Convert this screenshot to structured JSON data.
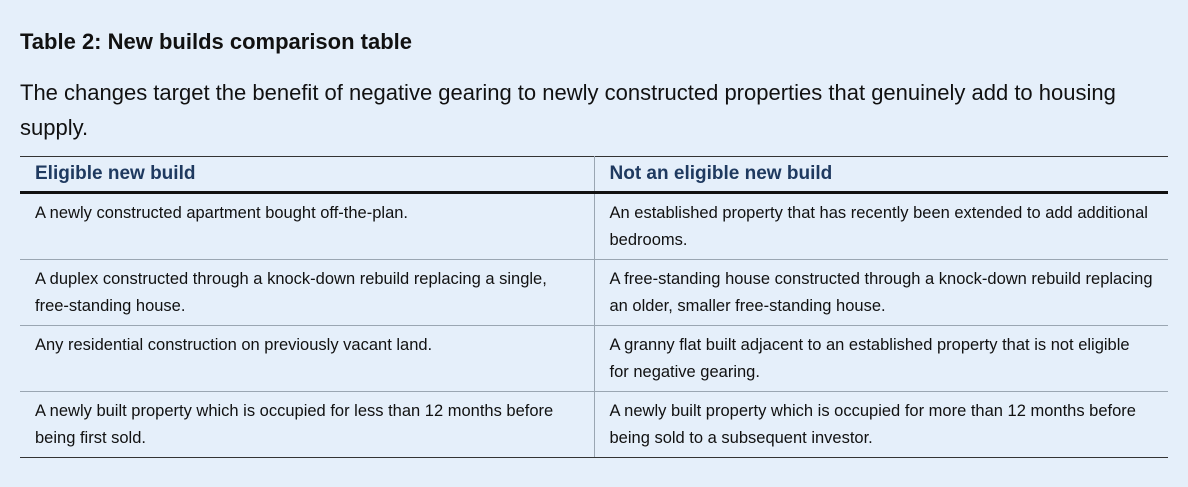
{
  "header": {
    "title": "Table 2: New builds comparison table",
    "intro": "The changes target the benefit of negative gearing to newly constructed properties that genuinely add to housing supply."
  },
  "table": {
    "columns": [
      "Eligible new build",
      "Not an eligible new build"
    ],
    "rows": [
      [
        "A newly constructed apartment bought off-the-plan.",
        "An established property that has recently been extended to add additional bedrooms."
      ],
      [
        "A duplex constructed through a knock-down rebuild replacing a single, free-standing house.",
        "A free-standing house constructed through a knock-down rebuild replacing an older, smaller free-standing house."
      ],
      [
        "Any residential construction on previously vacant land.",
        "A granny flat built adjacent to an established property that is not eligible for negative gearing."
      ],
      [
        "A newly built property which is occupied for less than 12 months before being first sold.",
        "A newly built property which is occupied for more than 12 months before being sold to a subsequent investor."
      ]
    ]
  }
}
